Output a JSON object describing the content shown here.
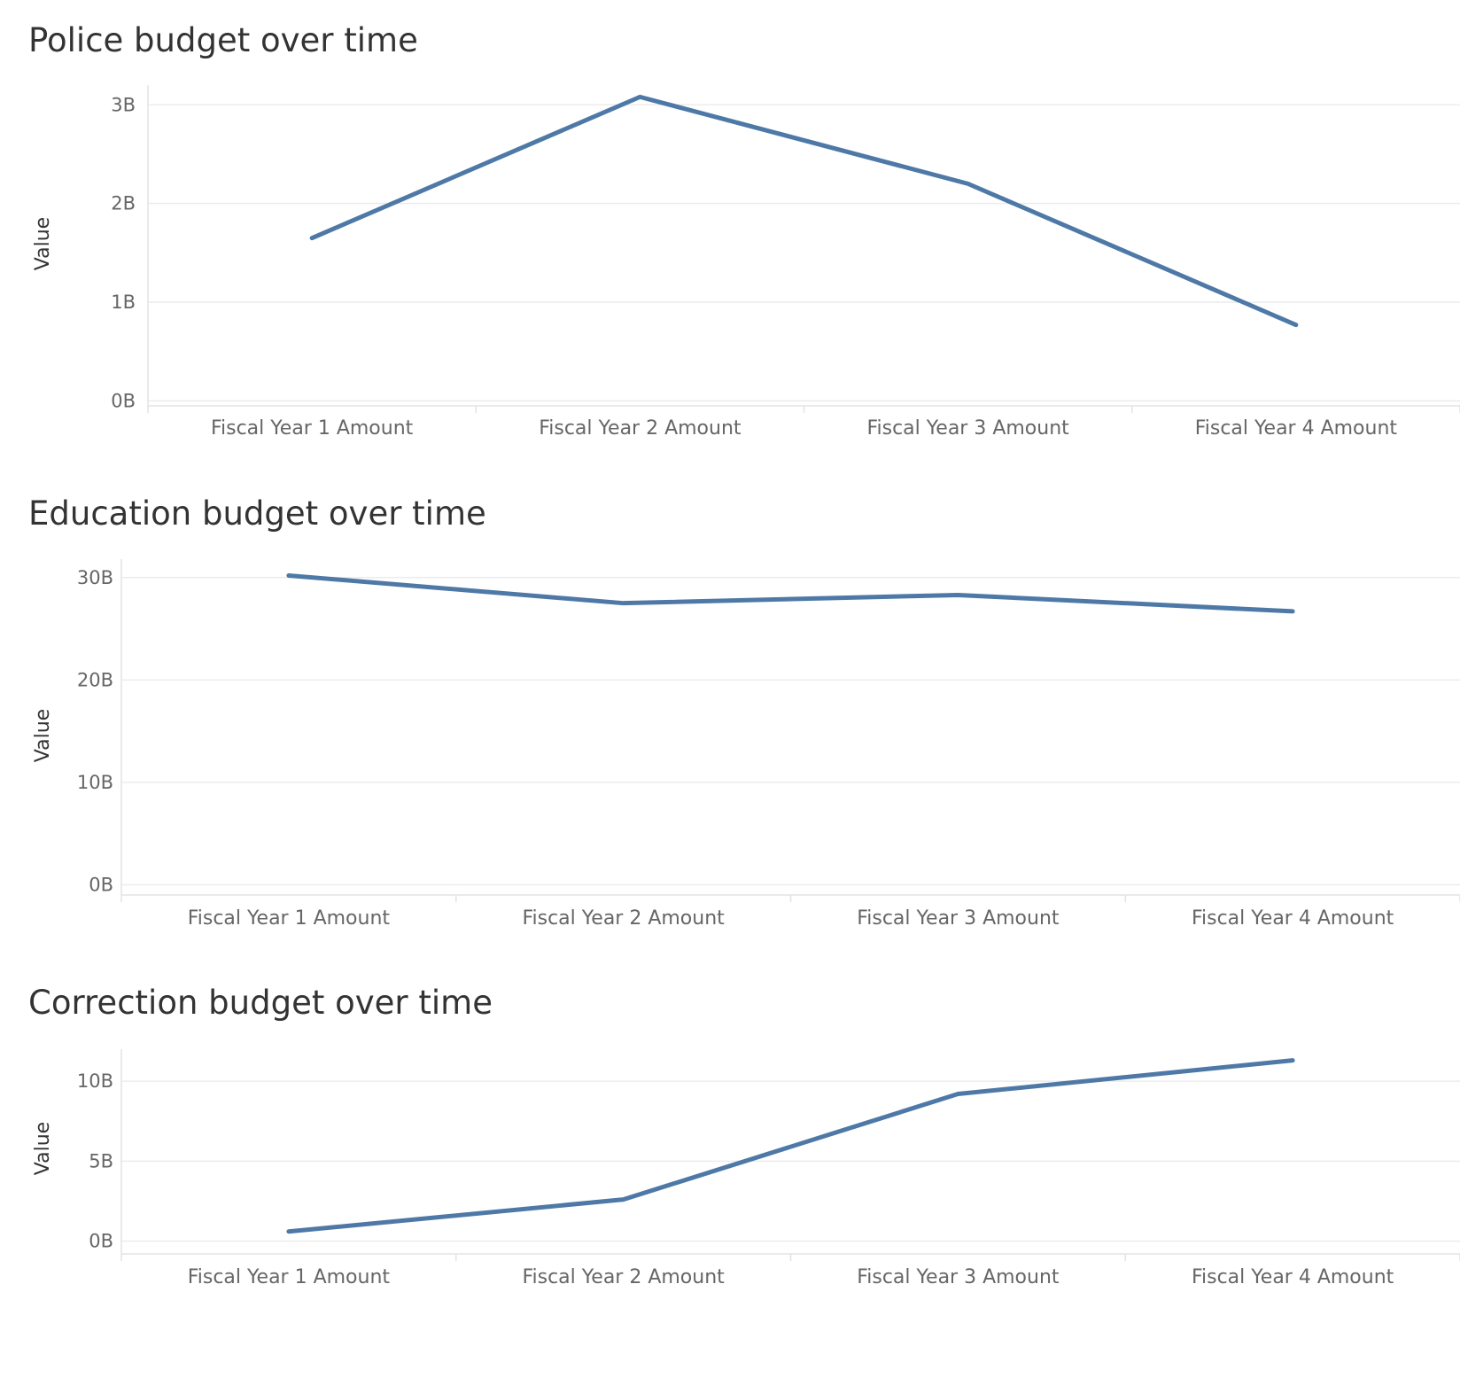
{
  "chart_data": [
    {
      "type": "line",
      "title": "Police budget over time",
      "ylabel": "Value",
      "xlabel": "",
      "categories": [
        "Fiscal Year 1 Amount",
        "Fiscal Year 2 Amount",
        "Fiscal Year 3 Amount",
        "Fiscal Year 4 Amount"
      ],
      "series": [
        {
          "values": [
            1.65,
            3.08,
            2.2,
            0.77
          ]
        }
      ],
      "yticks": [
        0,
        1,
        2,
        3
      ],
      "ytick_labels": [
        "0B",
        "1B",
        "2B",
        "3B"
      ],
      "ylim": [
        -0.05,
        3.2
      ],
      "grid": true,
      "color": "#4e79a7"
    },
    {
      "type": "line",
      "title": "Education budget over time",
      "ylabel": "Value",
      "xlabel": "",
      "categories": [
        "Fiscal Year 1 Amount",
        "Fiscal Year 2 Amount",
        "Fiscal Year 3 Amount",
        "Fiscal Year 4 Amount"
      ],
      "series": [
        {
          "values": [
            30.2,
            27.5,
            28.3,
            26.7
          ]
        }
      ],
      "yticks": [
        0,
        10,
        20,
        30
      ],
      "ytick_labels": [
        "0B",
        "10B",
        "20B",
        "30B"
      ],
      "ylim": [
        -1,
        31.8
      ],
      "grid": true,
      "color": "#4e79a7"
    },
    {
      "type": "line",
      "title": "Correction budget over time",
      "ylabel": "Value",
      "xlabel": "",
      "categories": [
        "Fiscal Year 1 Amount",
        "Fiscal Year 2 Amount",
        "Fiscal Year 3 Amount",
        "Fiscal Year 4 Amount"
      ],
      "series": [
        {
          "values": [
            0.6,
            2.6,
            9.2,
            11.3
          ]
        }
      ],
      "yticks": [
        0,
        5,
        10
      ],
      "ytick_labels": [
        "0B",
        "5B",
        "10B"
      ],
      "ylim": [
        -0.8,
        12
      ],
      "grid": true,
      "color": "#4e79a7"
    }
  ]
}
